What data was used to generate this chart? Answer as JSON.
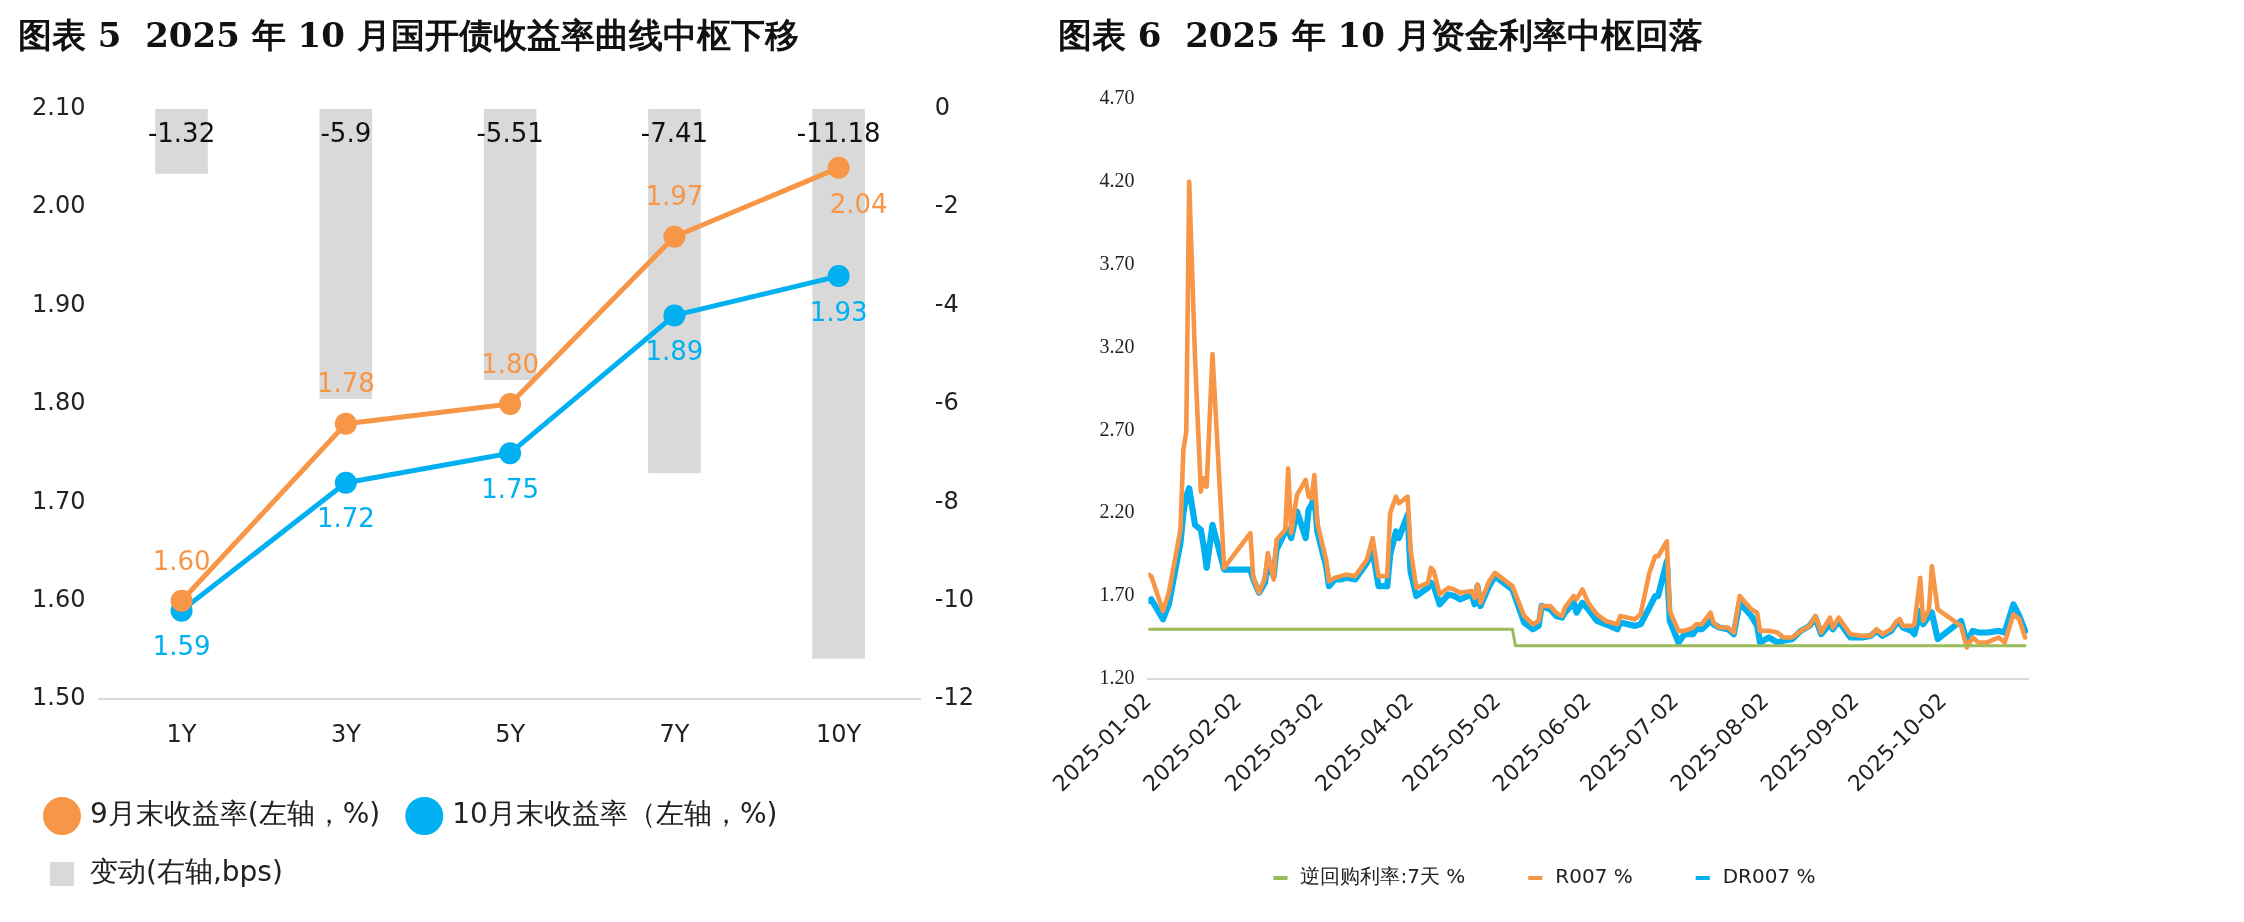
{
  "chart_data": [
    {
      "type": "line",
      "title": "图表 5  2025 年 10 月国开债收益率曲线中枢下移",
      "categories": [
        "1Y",
        "3Y",
        "5Y",
        "7Y",
        "10Y"
      ],
      "series": [
        {
          "type": "bar",
          "name": "变动(右轴,bps)",
          "color": "#d9d9d9",
          "axis": "y2",
          "values": [
            -1.32,
            -5.9,
            -5.51,
            -7.41,
            -11.18
          ],
          "value_labels": [
            "-1.32",
            "-5.9",
            "-5.51",
            "-7.41",
            "-11.18"
          ]
        },
        {
          "name": "9月末收益率(左轴，%)",
          "color": "#f79646",
          "values": [
            1.6,
            1.78,
            1.8,
            1.97,
            2.04
          ],
          "value_labels": [
            "1.60",
            "1.78",
            "1.80",
            "1.97",
            "2.04"
          ]
        },
        {
          "name": "10月末收益率（左轴，%)",
          "color": "#00b0f0",
          "values": [
            1.59,
            1.72,
            1.75,
            1.89,
            1.93
          ],
          "value_labels": [
            "1.59",
            "1.72",
            "1.75",
            "1.89",
            "1.93"
          ]
        }
      ],
      "ylim": [
        1.5,
        2.1
      ],
      "yticks": [
        {
          "value": 1.5,
          "label": "1.50"
        },
        {
          "value": 1.6,
          "label": "1.60"
        },
        {
          "value": 1.7,
          "label": "1.70"
        },
        {
          "value": 1.8,
          "label": "1.80"
        },
        {
          "value": 1.9,
          "label": "1.90"
        },
        {
          "value": 2.0,
          "label": "2.00"
        },
        {
          "value": 2.1,
          "label": "2.10"
        }
      ],
      "y2lim": [
        -12,
        0
      ],
      "y2ticks": [
        -12,
        -10,
        -8,
        -6,
        -4,
        -2,
        0
      ],
      "grid": false,
      "legend": "bottom",
      "marker": "circle",
      "line_style": "solid"
    },
    {
      "type": "line",
      "title": "图表 6  2025 年 10 月资金利率中枢回落",
      "x": [
        "2025-01-02",
        "2025-01-03",
        "2025-01-07",
        "2025-01-09",
        "2025-01-13",
        "2025-01-14",
        "2025-01-15",
        "2025-01-16",
        "2025-01-18",
        "2025-01-20",
        "2025-01-21",
        "2025-01-22",
        "2025-01-24",
        "2025-01-28",
        "2025-02-06",
        "2025-02-07",
        "2025-02-09",
        "2025-02-11",
        "2025-02-12",
        "2025-02-14",
        "2025-02-15",
        "2025-02-18",
        "2025-02-19",
        "2025-02-20",
        "2025-02-22",
        "2025-02-25",
        "2025-02-26",
        "2025-02-27",
        "2025-02-28",
        "2025-03-01",
        "2025-03-04",
        "2025-03-05",
        "2025-03-07",
        "2025-03-09",
        "2025-03-11",
        "2025-03-14",
        "2025-03-18",
        "2025-03-20",
        "2025-03-22",
        "2025-03-25",
        "2025-03-26",
        "2025-03-28",
        "2025-03-29",
        "2025-04-01",
        "2025-04-02",
        "2025-04-04",
        "2025-04-08",
        "2025-04-09",
        "2025-04-10",
        "2025-04-12",
        "2025-04-15",
        "2025-04-17",
        "2025-04-19",
        "2025-04-23",
        "2025-04-24",
        "2025-04-25",
        "2025-04-26",
        "2025-04-29",
        "2025-05-01",
        "2025-05-07",
        "2025-05-11",
        "2025-05-14",
        "2025-05-16",
        "2025-05-17",
        "2025-05-20",
        "2025-05-22",
        "2025-05-24",
        "2025-05-25",
        "2025-05-28",
        "2025-05-29",
        "2025-05-31",
        "2025-06-02",
        "2025-06-05",
        "2025-06-08",
        "2025-06-12",
        "2025-06-13",
        "2025-06-18",
        "2025-06-20",
        "2025-06-23",
        "2025-06-25",
        "2025-06-26",
        "2025-06-29",
        "2025-06-30",
        "2025-07-03",
        "2025-07-05",
        "2025-07-08",
        "2025-07-09",
        "2025-07-11",
        "2025-07-14",
        "2025-07-15",
        "2025-07-17",
        "2025-07-20",
        "2025-07-22",
        "2025-07-24",
        "2025-07-28",
        "2025-07-30",
        "2025-07-31",
        "2025-08-03",
        "2025-08-06",
        "2025-08-08",
        "2025-08-11",
        "2025-08-14",
        "2025-08-17",
        "2025-08-19",
        "2025-08-21",
        "2025-08-24",
        "2025-08-25",
        "2025-08-27",
        "2025-08-31",
        "2025-09-04",
        "2025-09-07",
        "2025-09-09",
        "2025-09-11",
        "2025-09-14",
        "2025-09-16",
        "2025-09-17",
        "2025-09-18",
        "2025-09-21",
        "2025-09-22",
        "2025-09-24",
        "2025-09-25",
        "2025-09-27",
        "2025-09-28",
        "2025-09-30",
        "2025-10-08",
        "2025-10-10",
        "2025-10-12",
        "2025-10-14",
        "2025-10-17",
        "2025-10-21",
        "2025-10-23",
        "2025-10-26",
        "2025-10-28",
        "2025-10-30"
      ],
      "series": [
        {
          "name": "DR007 %",
          "color": "#00b0f0",
          "values": [
            1.67,
            1.68,
            1.56,
            1.65,
            2.02,
            2.2,
            2.3,
            2.35,
            2.13,
            2.1,
            2.0,
            1.87,
            2.13,
            1.86,
            1.86,
            1.8,
            1.72,
            1.78,
            1.9,
            1.82,
            1.98,
            2.09,
            2.1,
            2.05,
            2.21,
            2.05,
            2.22,
            2.25,
            2.3,
            2.09,
            1.88,
            1.76,
            1.8,
            1.8,
            1.81,
            1.8,
            1.9,
            1.97,
            1.76,
            1.76,
            1.95,
            2.09,
            2.05,
            2.19,
            1.85,
            1.7,
            1.75,
            1.78,
            1.76,
            1.65,
            1.71,
            1.7,
            1.68,
            1.71,
            1.65,
            1.76,
            1.64,
            1.76,
            1.82,
            1.74,
            1.54,
            1.5,
            1.52,
            1.64,
            1.62,
            1.58,
            1.57,
            1.6,
            1.66,
            1.6,
            1.66,
            1.62,
            1.55,
            1.53,
            1.5,
            1.54,
            1.52,
            1.53,
            1.63,
            1.7,
            1.7,
            1.91,
            1.55,
            1.42,
            1.47,
            1.47,
            1.5,
            1.5,
            1.55,
            1.53,
            1.51,
            1.5,
            1.47,
            1.66,
            1.58,
            1.52,
            1.42,
            1.45,
            1.42,
            1.43,
            1.44,
            1.49,
            1.52,
            1.57,
            1.47,
            1.53,
            1.5,
            1.55,
            1.45,
            1.45,
            1.46,
            1.49,
            1.46,
            1.49,
            1.54,
            1.54,
            1.51,
            1.49,
            1.47,
            1.61,
            1.53,
            1.58,
            1.6,
            1.44,
            1.55,
            1.42,
            1.49,
            1.48,
            1.48,
            1.49,
            1.48,
            1.65,
            1.58,
            1.49
          ]
        },
        {
          "name": "R007 %",
          "color": "#f79646",
          "values": [
            1.83,
            1.82,
            1.61,
            1.72,
            2.1,
            2.58,
            2.69,
            4.2,
            3.14,
            2.33,
            2.41,
            2.36,
            3.16,
            1.87,
            2.08,
            1.81,
            1.72,
            1.81,
            1.96,
            1.8,
            2.04,
            2.1,
            2.47,
            2.08,
            2.31,
            2.4,
            2.3,
            2.29,
            2.43,
            2.14,
            1.92,
            1.79,
            1.81,
            1.82,
            1.83,
            1.82,
            1.92,
            2.05,
            1.82,
            1.82,
            2.2,
            2.3,
            2.26,
            2.3,
            1.98,
            1.75,
            1.78,
            1.87,
            1.85,
            1.71,
            1.75,
            1.74,
            1.72,
            1.73,
            1.69,
            1.77,
            1.66,
            1.79,
            1.84,
            1.76,
            1.58,
            1.53,
            1.55,
            1.64,
            1.64,
            1.6,
            1.58,
            1.63,
            1.7,
            1.68,
            1.74,
            1.66,
            1.59,
            1.55,
            1.53,
            1.58,
            1.56,
            1.59,
            1.84,
            1.94,
            1.94,
            2.03,
            1.61,
            1.49,
            1.49,
            1.51,
            1.53,
            1.53,
            1.6,
            1.54,
            1.51,
            1.51,
            1.48,
            1.7,
            1.62,
            1.6,
            1.49,
            1.49,
            1.48,
            1.45,
            1.45,
            1.49,
            1.52,
            1.58,
            1.48,
            1.57,
            1.51,
            1.57,
            1.47,
            1.46,
            1.46,
            1.5,
            1.47,
            1.5,
            1.55,
            1.56,
            1.52,
            1.52,
            1.53,
            1.81,
            1.55,
            1.62,
            1.88,
            1.62,
            1.52,
            1.39,
            1.45,
            1.42,
            1.42,
            1.45,
            1.42,
            1.59,
            1.56,
            1.45
          ]
        },
        {
          "name": "逆回购利率:7天 %",
          "color": "#9bbb59",
          "x": [
            "2025-01-02",
            "2025-05-07",
            "2025-05-08",
            "2025-10-30"
          ],
          "values": [
            1.5,
            1.5,
            1.4,
            1.4
          ]
        }
      ],
      "xlim": [
        "2025-01-02",
        "2025-10-31"
      ],
      "xticks": [
        "2025-01-02",
        "2025-02-02",
        "2025-03-02",
        "2025-04-02",
        "2025-05-02",
        "2025-06-02",
        "2025-07-02",
        "2025-08-02",
        "2025-09-02",
        "2025-10-02"
      ],
      "ylim": [
        1.2,
        4.7
      ],
      "yticks": [
        {
          "value": 1.2,
          "label": "1.20"
        },
        {
          "value": 1.7,
          "label": "1.70"
        },
        {
          "value": 2.2,
          "label": "2.20"
        },
        {
          "value": 2.7,
          "label": "2.70"
        },
        {
          "value": 3.2,
          "label": "3.20"
        },
        {
          "value": 3.7,
          "label": "3.70"
        },
        {
          "value": 4.2,
          "label": "4.20"
        },
        {
          "value": 4.7,
          "label": "4.70"
        }
      ],
      "grid": false,
      "legend": "bottom",
      "marker": "none",
      "line_style": "solid"
    }
  ]
}
